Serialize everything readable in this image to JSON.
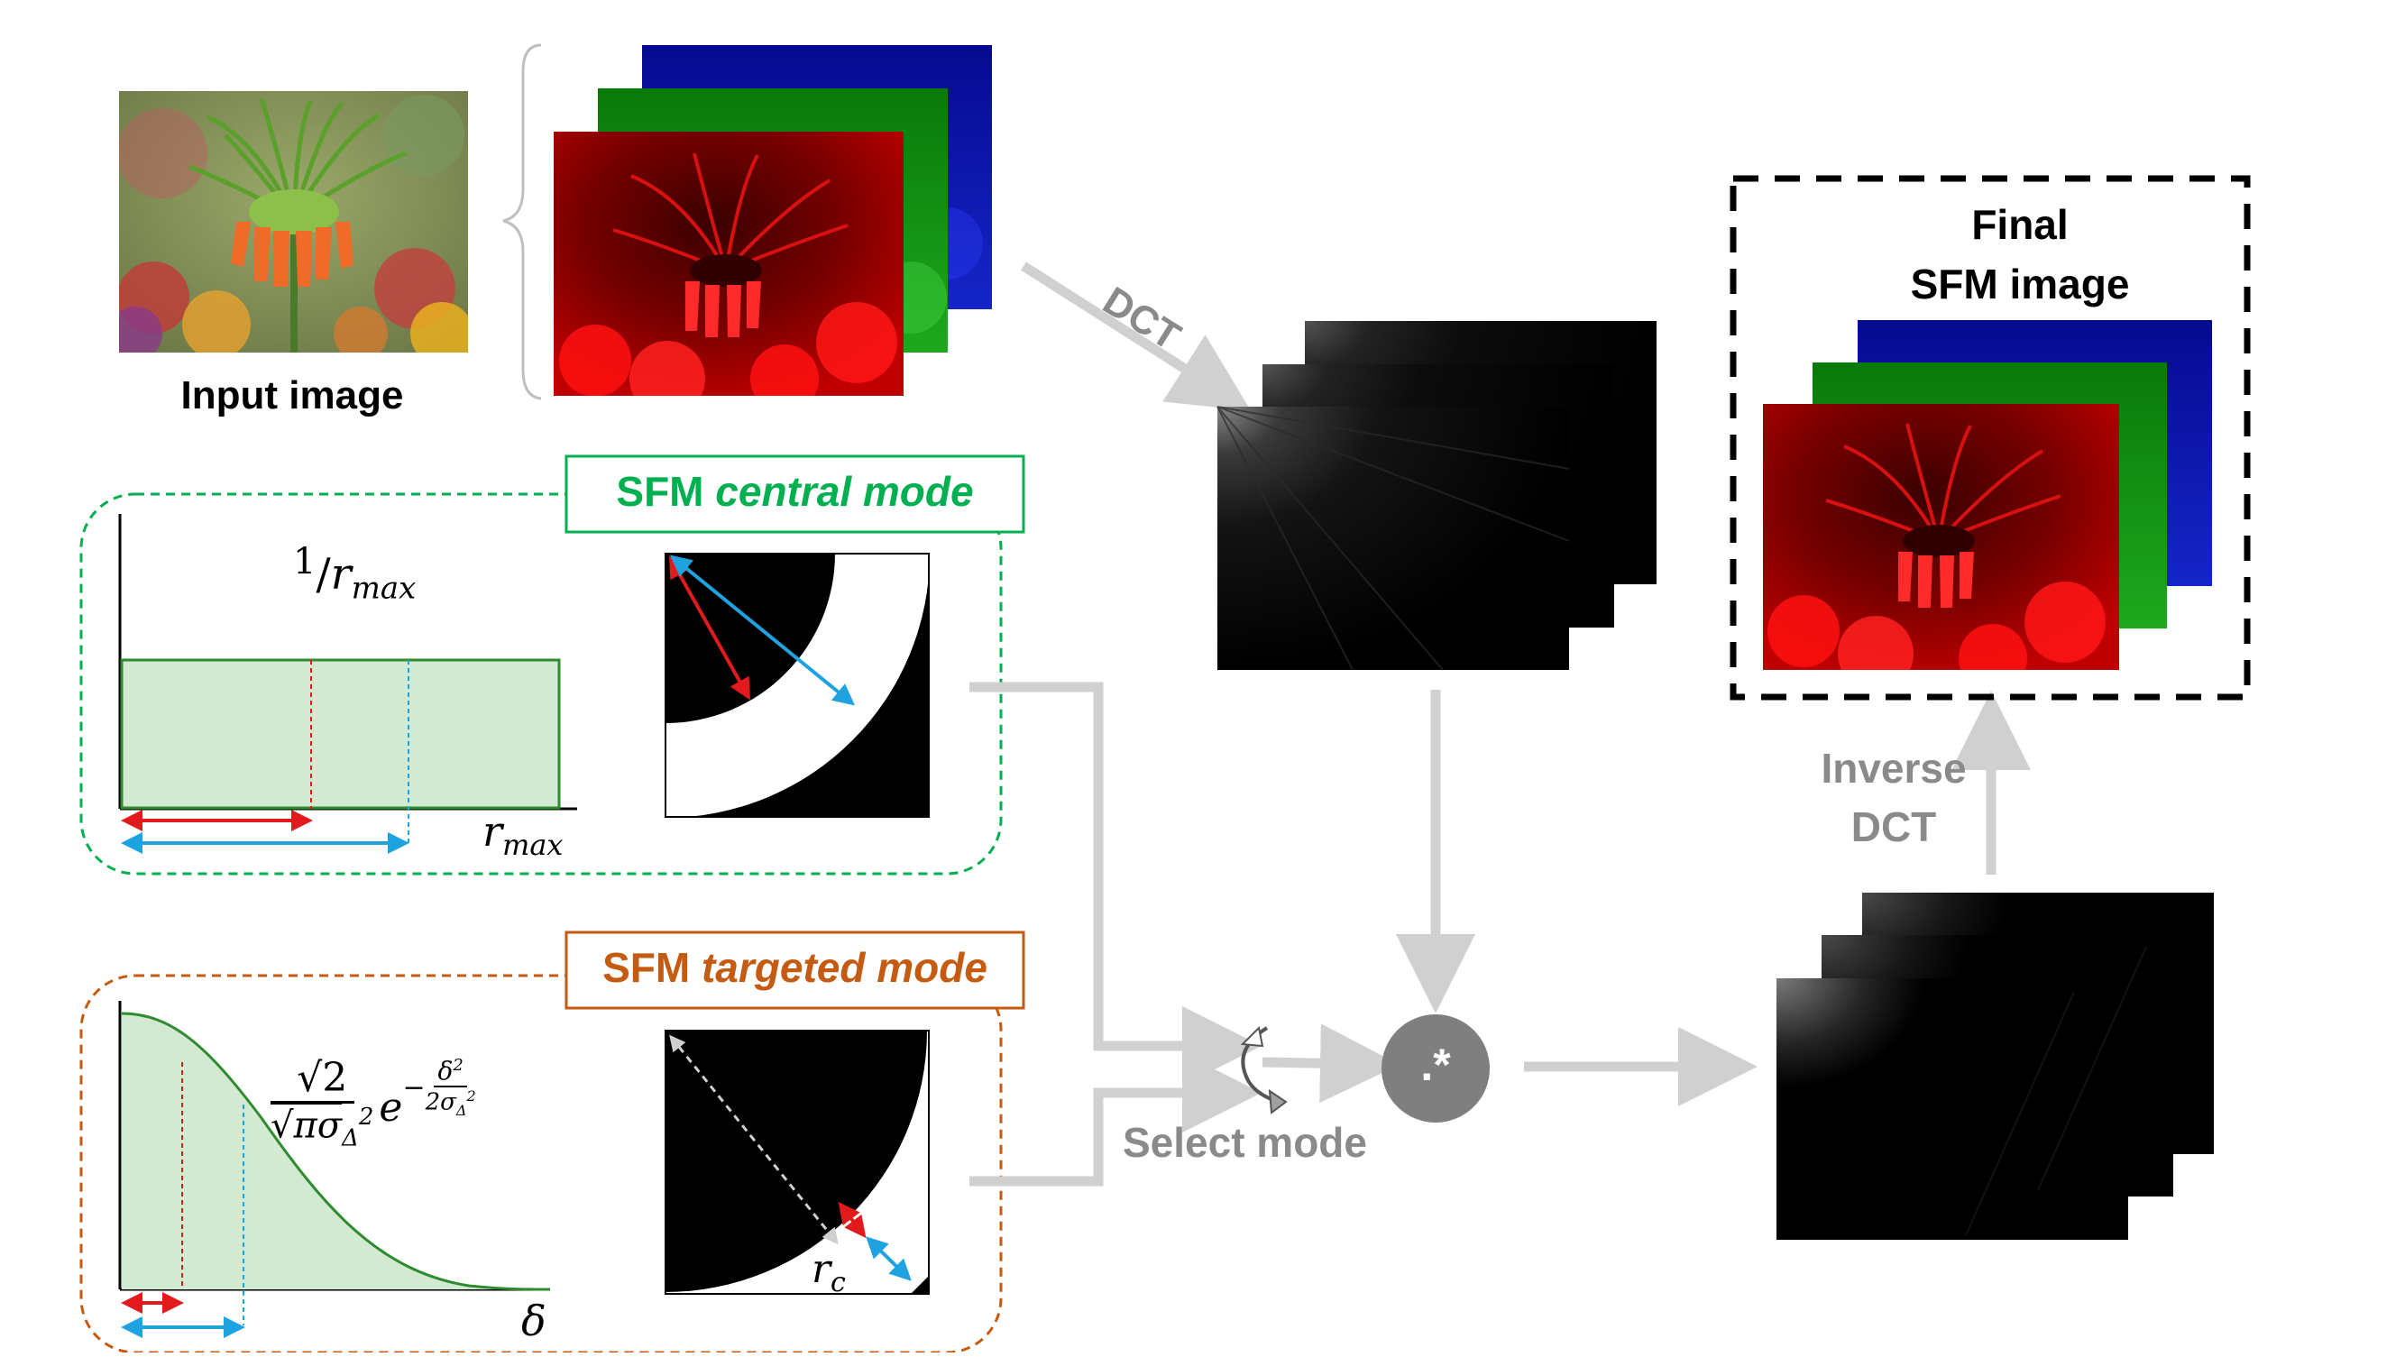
{
  "input_image": {
    "label": "Input image"
  },
  "dct": {
    "label": "DCT"
  },
  "central_mode": {
    "title_prefix": "SFM ",
    "title_italic": "central mode",
    "formula_numerator": "1",
    "formula_denominator": "r",
    "formula_sub": "max",
    "axis_label": "r",
    "axis_sub": "max"
  },
  "targeted_mode": {
    "title_prefix": "SFM ",
    "title_italic": "targeted mode",
    "formula_num": "√2",
    "formula_den": "√πσ",
    "formula_den_sub": "Δ",
    "formula_den_sup": "2",
    "formula_e": "e",
    "exp_num": "δ",
    "exp_num_sup": "2",
    "exp_den": "2σ",
    "exp_den_sub": "Δ",
    "exp_den_sup": "2",
    "exp_minus": "−",
    "axis_label": "δ",
    "mask_label": "r",
    "mask_sub": "c"
  },
  "select_mode": {
    "label": "Select mode"
  },
  "multiply": {
    "symbol": ".*"
  },
  "inverse_dct": {
    "line1": "Inverse",
    "line2": "DCT"
  },
  "final": {
    "line1": "Final",
    "line2": "SFM image"
  },
  "colors": {
    "green": "#00b050",
    "orange": "#c55a11",
    "arrow_gray": "#d0d0d0",
    "label_gray": "#7f7f7f",
    "red_arrow": "#e31a1c",
    "blue_arrow": "#1fa3e0",
    "fill_green": "#d3ead2",
    "curve_green": "#2e8b2e"
  },
  "icons": [
    "input-flower-photo",
    "rgb-channel-stack",
    "dct-spectrum-stack",
    "multiply-circle",
    "select-mode-rotate-icon"
  ]
}
